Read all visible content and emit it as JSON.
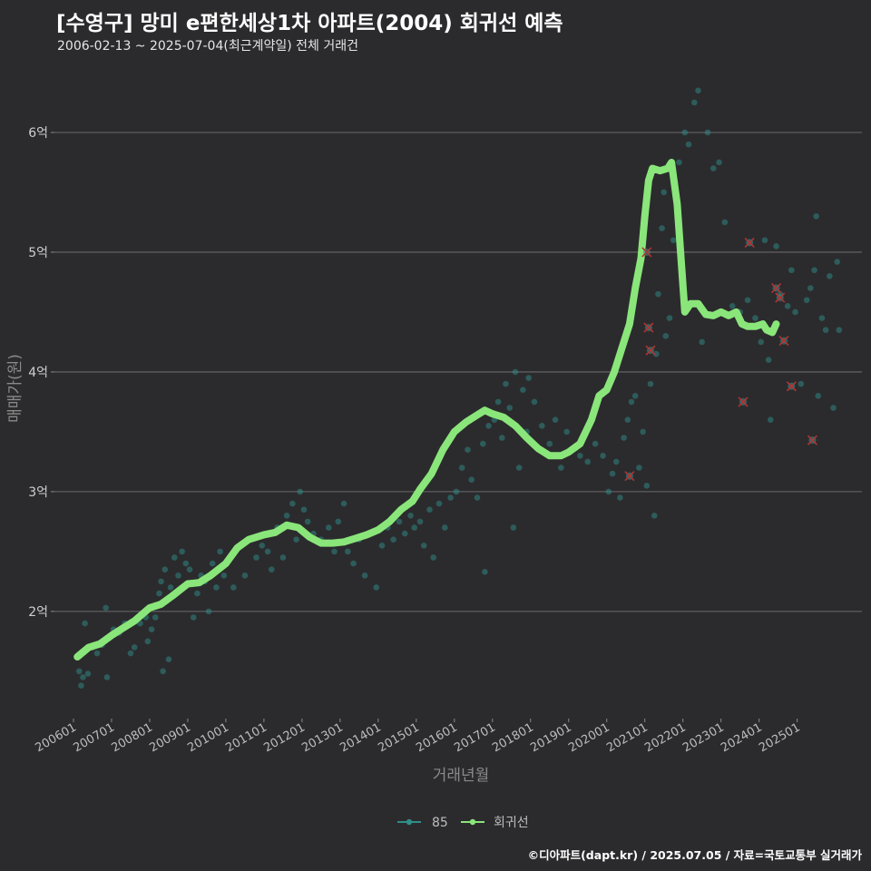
{
  "header": {
    "title": "[수영구] 망미 e편한세상1차 아파트(2004) 회귀선 예측",
    "subtitle": "2006-02-13 ~ 2025-07-04(최근계약일) 전체 거래건"
  },
  "footer": {
    "credit": "©디아파트(dapt.kr) / 2025.07.05 / 자료=국토교통부 실거래가"
  },
  "chart_data": {
    "type": "scatter",
    "xlabel": "거래년월",
    "ylabel": "매매가(원)",
    "x_ticks": [
      "200601",
      "200701",
      "200801",
      "200901",
      "201001",
      "201101",
      "201201",
      "201301",
      "201401",
      "201501",
      "201601",
      "201701",
      "201801",
      "201901",
      "202001",
      "202101",
      "202201",
      "202301",
      "202401",
      "202501"
    ],
    "y_ticks": [
      {
        "value": 2,
        "label": "2억"
      },
      {
        "value": 3,
        "label": "3억"
      },
      {
        "value": 4,
        "label": "4억"
      },
      {
        "value": 5,
        "label": "5억"
      },
      {
        "value": 6,
        "label": "6억"
      }
    ],
    "xlim": [
      2005.5,
      2026.7
    ],
    "ylim": [
      1.12,
      6.5
    ],
    "y_unit": "억원",
    "grid": "horizontal",
    "legend": {
      "placement": "bottom",
      "entries": [
        "85",
        "회귀선"
      ]
    },
    "colors": {
      "scatter": "#2f8e8a",
      "regression": "#8ae67a",
      "cancelled": "#b83232"
    },
    "series": [
      {
        "name": "85",
        "type": "scatter",
        "points": [
          [
            2006.12,
            1.62
          ],
          [
            2006.15,
            1.5
          ],
          [
            2006.2,
            1.38
          ],
          [
            2006.25,
            1.45
          ],
          [
            2006.3,
            1.9
          ],
          [
            2006.38,
            1.48
          ],
          [
            2006.5,
            1.7
          ],
          [
            2006.62,
            1.65
          ],
          [
            2006.75,
            1.72
          ],
          [
            2006.85,
            2.03
          ],
          [
            2006.88,
            1.45
          ],
          [
            2006.95,
            1.78
          ],
          [
            2007.05,
            1.85
          ],
          [
            2007.2,
            1.82
          ],
          [
            2007.35,
            1.9
          ],
          [
            2007.5,
            1.65
          ],
          [
            2007.6,
            1.7
          ],
          [
            2007.75,
            1.9
          ],
          [
            2007.9,
            1.95
          ],
          [
            2007.95,
            1.75
          ],
          [
            2008.05,
            1.85
          ],
          [
            2008.15,
            1.95
          ],
          [
            2008.25,
            2.15
          ],
          [
            2008.3,
            2.25
          ],
          [
            2008.35,
            1.5
          ],
          [
            2008.4,
            2.35
          ],
          [
            2008.5,
            1.6
          ],
          [
            2008.55,
            2.2
          ],
          [
            2008.65,
            2.45
          ],
          [
            2008.75,
            2.3
          ],
          [
            2008.85,
            2.5
          ],
          [
            2008.95,
            2.4
          ],
          [
            2009.05,
            2.35
          ],
          [
            2009.15,
            1.95
          ],
          [
            2009.25,
            2.15
          ],
          [
            2009.35,
            2.3
          ],
          [
            2009.45,
            2.25
          ],
          [
            2009.55,
            2.0
          ],
          [
            2009.65,
            2.4
          ],
          [
            2009.75,
            2.2
          ],
          [
            2009.85,
            2.5
          ],
          [
            2009.95,
            2.3
          ],
          [
            2010.1,
            2.45
          ],
          [
            2010.2,
            2.2
          ],
          [
            2010.35,
            2.55
          ],
          [
            2010.5,
            2.3
          ],
          [
            2010.65,
            2.6
          ],
          [
            2010.8,
            2.45
          ],
          [
            2010.95,
            2.55
          ],
          [
            2011.1,
            2.5
          ],
          [
            2011.2,
            2.35
          ],
          [
            2011.35,
            2.7
          ],
          [
            2011.5,
            2.45
          ],
          [
            2011.6,
            2.8
          ],
          [
            2011.75,
            2.9
          ],
          [
            2011.85,
            2.6
          ],
          [
            2011.95,
            3.0
          ],
          [
            2012.05,
            2.85
          ],
          [
            2012.15,
            2.75
          ],
          [
            2012.3,
            2.65
          ],
          [
            2012.5,
            2.6
          ],
          [
            2012.7,
            2.7
          ],
          [
            2012.85,
            2.5
          ],
          [
            2012.95,
            2.75
          ],
          [
            2013.1,
            2.9
          ],
          [
            2013.2,
            2.5
          ],
          [
            2013.35,
            2.4
          ],
          [
            2013.5,
            2.6
          ],
          [
            2013.65,
            2.3
          ],
          [
            2013.8,
            2.65
          ],
          [
            2013.95,
            2.2
          ],
          [
            2014.1,
            2.55
          ],
          [
            2014.25,
            2.7
          ],
          [
            2014.4,
            2.6
          ],
          [
            2014.55,
            2.75
          ],
          [
            2014.7,
            2.65
          ],
          [
            2014.85,
            2.8
          ],
          [
            2014.95,
            2.7
          ],
          [
            2015.1,
            2.75
          ],
          [
            2015.2,
            2.55
          ],
          [
            2015.35,
            2.85
          ],
          [
            2015.45,
            2.45
          ],
          [
            2015.6,
            2.9
          ],
          [
            2015.75,
            2.7
          ],
          [
            2015.9,
            2.95
          ],
          [
            2016.05,
            3.0
          ],
          [
            2016.2,
            3.2
          ],
          [
            2016.35,
            3.35
          ],
          [
            2016.45,
            3.1
          ],
          [
            2016.6,
            2.95
          ],
          [
            2016.75,
            3.4
          ],
          [
            2016.8,
            2.33
          ],
          [
            2016.9,
            3.55
          ],
          [
            2017.05,
            3.6
          ],
          [
            2017.15,
            3.75
          ],
          [
            2017.25,
            3.45
          ],
          [
            2017.35,
            3.9
          ],
          [
            2017.45,
            3.7
          ],
          [
            2017.55,
            2.7
          ],
          [
            2017.6,
            4.0
          ],
          [
            2017.7,
            3.2
          ],
          [
            2017.8,
            3.85
          ],
          [
            2017.9,
            3.5
          ],
          [
            2017.95,
            3.95
          ],
          [
            2018.1,
            3.75
          ],
          [
            2018.3,
            3.55
          ],
          [
            2018.5,
            3.4
          ],
          [
            2018.65,
            3.6
          ],
          [
            2018.8,
            3.2
          ],
          [
            2018.95,
            3.5
          ],
          [
            2019.1,
            3.35
          ],
          [
            2019.3,
            3.3
          ],
          [
            2019.5,
            3.25
          ],
          [
            2019.7,
            3.4
          ],
          [
            2019.9,
            3.3
          ],
          [
            2020.05,
            3.0
          ],
          [
            2020.15,
            3.15
          ],
          [
            2020.25,
            3.25
          ],
          [
            2020.35,
            2.95
          ],
          [
            2020.45,
            3.45
          ],
          [
            2020.55,
            3.6
          ],
          [
            2020.65,
            3.75
          ],
          [
            2020.75,
            3.8
          ],
          [
            2020.85,
            3.2
          ],
          [
            2020.95,
            3.5
          ],
          [
            2021.05,
            3.05
          ],
          [
            2021.15,
            3.9
          ],
          [
            2021.25,
            2.8
          ],
          [
            2021.3,
            4.15
          ],
          [
            2021.35,
            4.65
          ],
          [
            2021.45,
            5.2
          ],
          [
            2021.5,
            5.5
          ],
          [
            2021.55,
            4.3
          ],
          [
            2021.65,
            4.45
          ],
          [
            2021.75,
            5.1
          ],
          [
            2021.9,
            5.75
          ],
          [
            2022.05,
            6.0
          ],
          [
            2022.15,
            5.9
          ],
          [
            2022.3,
            6.25
          ],
          [
            2022.4,
            6.35
          ],
          [
            2022.5,
            4.25
          ],
          [
            2022.65,
            6.0
          ],
          [
            2022.8,
            5.7
          ],
          [
            2022.95,
            5.75
          ],
          [
            2023.1,
            5.25
          ],
          [
            2023.3,
            4.55
          ],
          [
            2023.5,
            4.5
          ],
          [
            2023.7,
            4.6
          ],
          [
            2023.9,
            4.45
          ],
          [
            2024.05,
            4.25
          ],
          [
            2024.15,
            5.1
          ],
          [
            2024.25,
            4.1
          ],
          [
            2024.3,
            3.6
          ],
          [
            2024.45,
            5.05
          ],
          [
            2024.55,
            4.65
          ],
          [
            2024.75,
            4.55
          ],
          [
            2024.85,
            4.85
          ],
          [
            2024.95,
            4.5
          ],
          [
            2025.1,
            3.9
          ],
          [
            2025.25,
            4.6
          ],
          [
            2025.35,
            4.7
          ],
          [
            2025.45,
            4.85
          ],
          [
            2025.5,
            5.3
          ],
          [
            2025.55,
            3.8
          ],
          [
            2025.65,
            4.45
          ],
          [
            2025.75,
            4.35
          ],
          [
            2025.85,
            4.8
          ],
          [
            2025.95,
            3.7
          ],
          [
            2026.05,
            4.92
          ],
          [
            2026.1,
            4.35
          ]
        ]
      },
      {
        "name": "회귀선",
        "type": "line",
        "points": [
          [
            2006.1,
            1.62
          ],
          [
            2006.4,
            1.7
          ],
          [
            2006.7,
            1.73
          ],
          [
            2007.0,
            1.8
          ],
          [
            2007.3,
            1.86
          ],
          [
            2007.6,
            1.92
          ],
          [
            2008.0,
            2.03
          ],
          [
            2008.3,
            2.06
          ],
          [
            2008.6,
            2.13
          ],
          [
            2009.0,
            2.23
          ],
          [
            2009.3,
            2.24
          ],
          [
            2009.6,
            2.3
          ],
          [
            2010.0,
            2.4
          ],
          [
            2010.3,
            2.53
          ],
          [
            2010.6,
            2.6
          ],
          [
            2011.0,
            2.64
          ],
          [
            2011.3,
            2.66
          ],
          [
            2011.6,
            2.72
          ],
          [
            2011.9,
            2.7
          ],
          [
            2012.2,
            2.62
          ],
          [
            2012.5,
            2.57
          ],
          [
            2012.8,
            2.57
          ],
          [
            2013.1,
            2.58
          ],
          [
            2013.4,
            2.61
          ],
          [
            2013.7,
            2.64
          ],
          [
            2014.0,
            2.68
          ],
          [
            2014.3,
            2.75
          ],
          [
            2014.6,
            2.85
          ],
          [
            2014.9,
            2.92
          ],
          [
            2015.1,
            3.02
          ],
          [
            2015.4,
            3.15
          ],
          [
            2015.7,
            3.35
          ],
          [
            2016.0,
            3.5
          ],
          [
            2016.3,
            3.58
          ],
          [
            2016.6,
            3.64
          ],
          [
            2016.8,
            3.68
          ],
          [
            2017.0,
            3.65
          ],
          [
            2017.3,
            3.62
          ],
          [
            2017.6,
            3.55
          ],
          [
            2017.9,
            3.45
          ],
          [
            2018.2,
            3.36
          ],
          [
            2018.5,
            3.3
          ],
          [
            2018.8,
            3.3
          ],
          [
            2019.0,
            3.33
          ],
          [
            2019.3,
            3.4
          ],
          [
            2019.6,
            3.6
          ],
          [
            2019.8,
            3.8
          ],
          [
            2020.0,
            3.85
          ],
          [
            2020.2,
            4.0
          ],
          [
            2020.4,
            4.2
          ],
          [
            2020.6,
            4.4
          ],
          [
            2020.75,
            4.7
          ],
          [
            2020.9,
            4.95
          ],
          [
            2021.0,
            5.3
          ],
          [
            2021.1,
            5.6
          ],
          [
            2021.2,
            5.7
          ],
          [
            2021.4,
            5.68
          ],
          [
            2021.6,
            5.7
          ],
          [
            2021.7,
            5.75
          ],
          [
            2021.85,
            5.4
          ],
          [
            2021.95,
            4.95
          ],
          [
            2022.05,
            4.5
          ],
          [
            2022.2,
            4.57
          ],
          [
            2022.4,
            4.57
          ],
          [
            2022.6,
            4.48
          ],
          [
            2022.8,
            4.47
          ],
          [
            2023.0,
            4.5
          ],
          [
            2023.2,
            4.47
          ],
          [
            2023.4,
            4.5
          ],
          [
            2023.55,
            4.4
          ],
          [
            2023.7,
            4.38
          ],
          [
            2023.9,
            4.38
          ],
          [
            2024.1,
            4.4
          ],
          [
            2024.2,
            4.35
          ],
          [
            2024.35,
            4.33
          ],
          [
            2024.45,
            4.4
          ]
        ]
      }
    ],
    "cancelled_points": [
      [
        2020.6,
        3.13
      ],
      [
        2021.05,
        5.0
      ],
      [
        2021.1,
        4.37
      ],
      [
        2021.15,
        4.18
      ],
      [
        2023.58,
        3.75
      ],
      [
        2023.75,
        5.08
      ],
      [
        2024.45,
        4.7
      ],
      [
        2024.55,
        4.62
      ],
      [
        2024.65,
        4.26
      ],
      [
        2024.85,
        3.88
      ],
      [
        2025.4,
        3.43
      ]
    ]
  }
}
